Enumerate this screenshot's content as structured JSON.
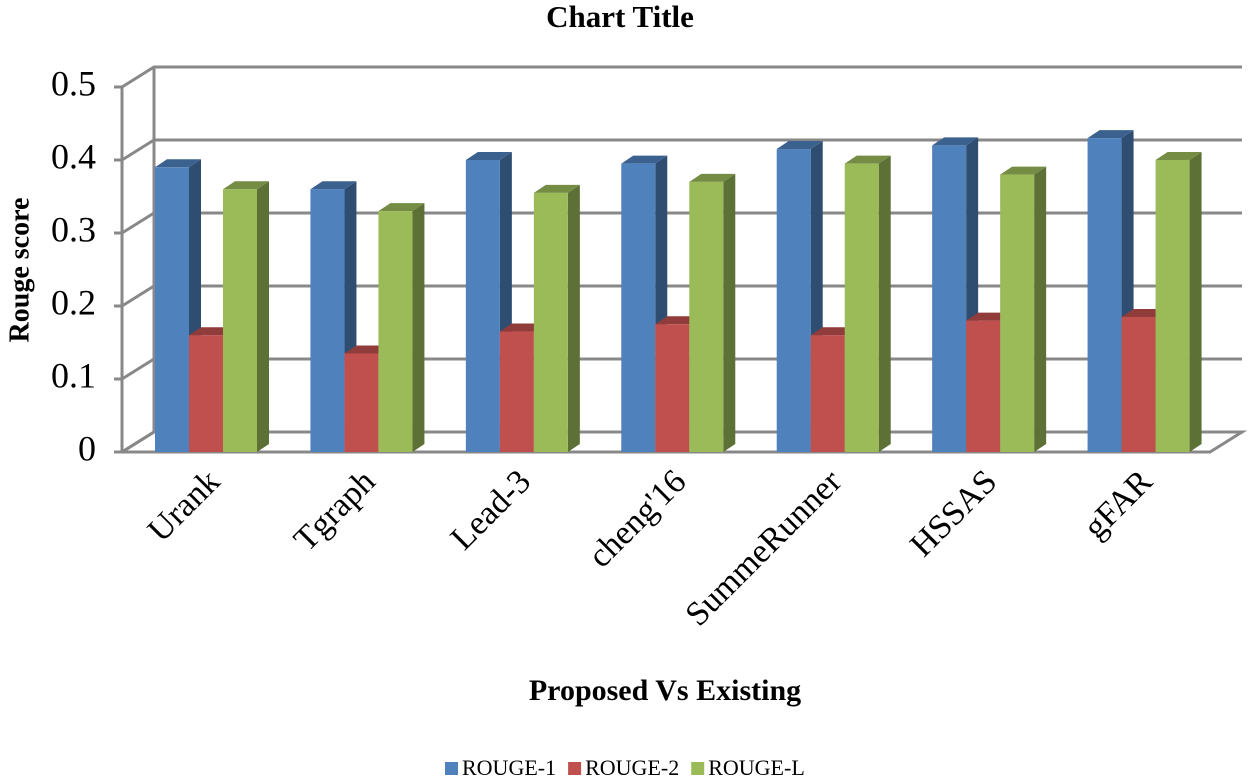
{
  "chart_data": {
    "type": "bar3d",
    "title": "Chart Title",
    "x_label": "Proposed Vs Existing",
    "y_label": "Rouge score",
    "categories": [
      "Urank",
      "Tgraph",
      "Lead-3",
      "cheng'16",
      "SummeRunner",
      "HSSAS",
      "gFAR"
    ],
    "series": [
      {
        "name": "ROUGE-1",
        "color": "#4f81bd",
        "values": [
          0.39,
          0.36,
          0.4,
          0.395,
          0.415,
          0.42,
          0.43
        ]
      },
      {
        "name": "ROUGE-2",
        "color": "#c0504d",
        "values": [
          0.16,
          0.135,
          0.165,
          0.175,
          0.16,
          0.18,
          0.185
        ]
      },
      {
        "name": "ROUGE-L",
        "color": "#9bbb59",
        "values": [
          0.36,
          0.33,
          0.355,
          0.37,
          0.395,
          0.38,
          0.4
        ]
      }
    ],
    "ylim": [
      0,
      0.5
    ],
    "yticks": [
      0,
      0.1,
      0.2,
      0.3,
      0.4,
      0.5
    ],
    "grid": true,
    "legend": "bottom"
  }
}
